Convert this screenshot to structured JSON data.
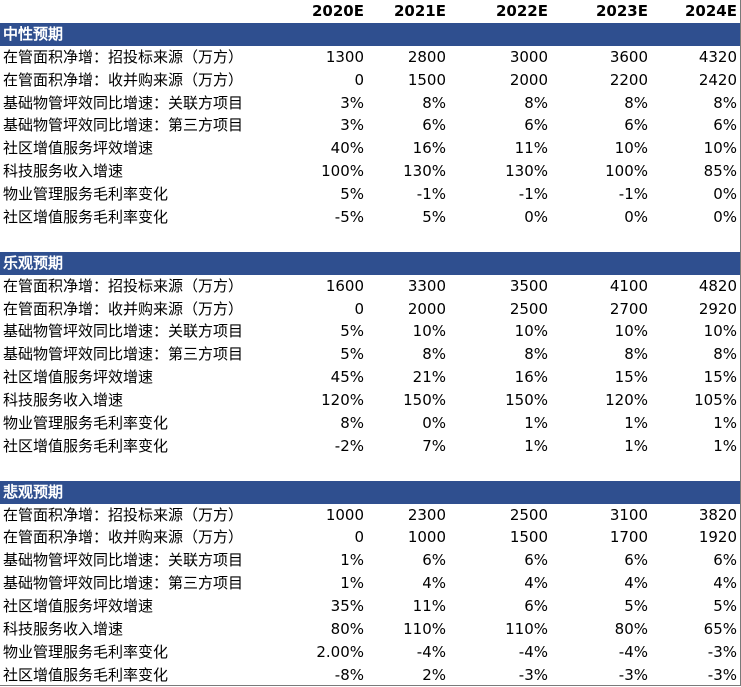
{
  "header": [
    "2020E",
    "2021E",
    "2022E",
    "2023E",
    "2024E"
  ],
  "sections": [
    {
      "title": "中性预期",
      "rows": [
        {
          "label": "在管面积净增：招投标来源（万方）",
          "values": [
            "1300",
            "2800",
            "3000",
            "3600",
            "4320"
          ]
        },
        {
          "label": "在管面积净增：收并购来源（万方）",
          "values": [
            "0",
            "1500",
            "2000",
            "2200",
            "2420"
          ]
        },
        {
          "label": "基础物管坪效同比增速：关联方项目",
          "values": [
            "3%",
            "8%",
            "8%",
            "8%",
            "8%"
          ]
        },
        {
          "label": "基础物管坪效同比增速：第三方项目",
          "values": [
            "3%",
            "6%",
            "6%",
            "6%",
            "6%"
          ]
        },
        {
          "label": "社区增值服务坪效增速",
          "values": [
            "40%",
            "16%",
            "11%",
            "10%",
            "10%"
          ]
        },
        {
          "label": "科技服务收入增速",
          "values": [
            "100%",
            "130%",
            "130%",
            "100%",
            "85%"
          ]
        },
        {
          "label": "物业管理服务毛利率变化",
          "values": [
            "5%",
            "-1%",
            "-1%",
            "-1%",
            "0%"
          ]
        },
        {
          "label": "社区增值服务毛利率变化",
          "values": [
            "-5%",
            "5%",
            "0%",
            "0%",
            "0%"
          ]
        }
      ]
    },
    {
      "title": "乐观预期",
      "rows": [
        {
          "label": "在管面积净增：招投标来源（万方）",
          "values": [
            "1600",
            "3300",
            "3500",
            "4100",
            "4820"
          ]
        },
        {
          "label": "在管面积净增：收并购来源（万方）",
          "values": [
            "0",
            "2000",
            "2500",
            "2700",
            "2920"
          ]
        },
        {
          "label": "基础物管坪效同比增速：关联方项目",
          "values": [
            "5%",
            "10%",
            "10%",
            "10%",
            "10%"
          ]
        },
        {
          "label": "基础物管坪效同比增速：第三方项目",
          "values": [
            "5%",
            "8%",
            "8%",
            "8%",
            "8%"
          ]
        },
        {
          "label": "社区增值服务坪效增速",
          "values": [
            "45%",
            "21%",
            "16%",
            "15%",
            "15%"
          ]
        },
        {
          "label": "科技服务收入增速",
          "values": [
            "120%",
            "150%",
            "150%",
            "120%",
            "105%"
          ]
        },
        {
          "label": "物业管理服务毛利率变化",
          "values": [
            "8%",
            "0%",
            "1%",
            "1%",
            "1%"
          ]
        },
        {
          "label": "社区增值服务毛利率变化",
          "values": [
            "-2%",
            "7%",
            "1%",
            "1%",
            "1%"
          ]
        }
      ]
    },
    {
      "title": "悲观预期",
      "rows": [
        {
          "label": "在管面积净增：招投标来源（万方）",
          "values": [
            "1000",
            "2300",
            "2500",
            "3100",
            "3820"
          ]
        },
        {
          "label": "在管面积净增：收并购来源（万方）",
          "values": [
            "0",
            "1000",
            "1500",
            "1700",
            "1920"
          ]
        },
        {
          "label": "基础物管坪效同比增速：关联方项目",
          "values": [
            "1%",
            "6%",
            "6%",
            "6%",
            "6%"
          ]
        },
        {
          "label": "基础物管坪效同比增速：第三方项目",
          "values": [
            "1%",
            "4%",
            "4%",
            "4%",
            "4%"
          ]
        },
        {
          "label": "社区增值服务坪效增速",
          "values": [
            "35%",
            "11%",
            "6%",
            "5%",
            "5%"
          ]
        },
        {
          "label": "科技服务收入增速",
          "values": [
            "80%",
            "110%",
            "110%",
            "80%",
            "65%"
          ]
        },
        {
          "label": "物业管理服务毛利率变化",
          "values": [
            "2.00%",
            "-4%",
            "-4%",
            "-4%",
            "-3%"
          ]
        },
        {
          "label": "社区增值服务毛利率变化",
          "values": [
            "-8%",
            "2%",
            "-3%",
            "-3%",
            "-3%"
          ]
        }
      ]
    }
  ],
  "colors": {
    "section_header_bg": "#2f4f8f",
    "section_header_text": "#ffffff"
  }
}
